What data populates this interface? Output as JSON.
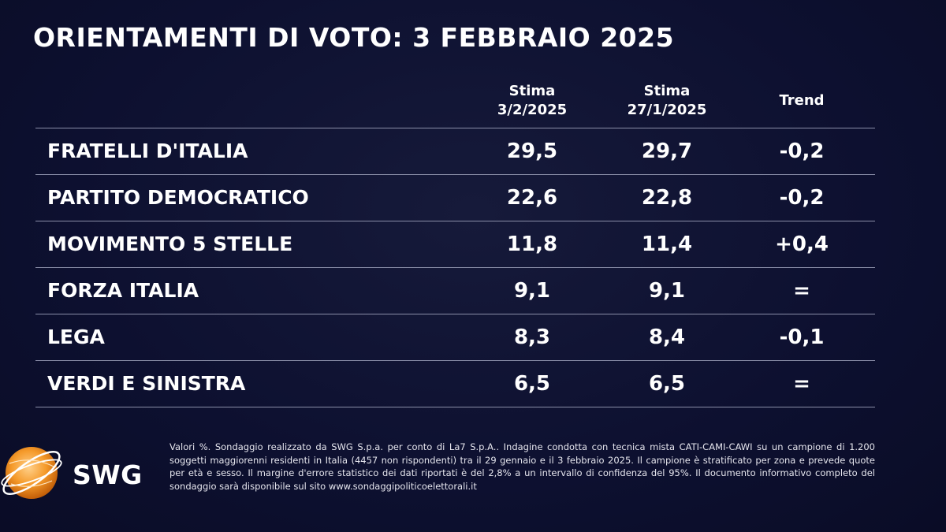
{
  "title": "ORIENTAMENTI DI VOTO: 3 FEBBRAIO 2025",
  "columns": {
    "estimate1": [
      "Stima",
      "3/2/2025"
    ],
    "estimate2": [
      "Stima",
      "27/1/2025"
    ],
    "trend": "Trend"
  },
  "chart_data": {
    "type": "table",
    "title": "ORIENTAMENTI DI VOTO: 3 FEBBRAIO 2025",
    "headers": [
      "",
      "Stima 3/2/2025",
      "Stima 27/1/2025",
      "Trend"
    ],
    "rows": [
      {
        "party": "FRATELLI D'ITALIA",
        "current": "29,5",
        "previous": "29,7",
        "trend": "-0,2"
      },
      {
        "party": "PARTITO DEMOCRATICO",
        "current": "22,6",
        "previous": "22,8",
        "trend": "-0,2"
      },
      {
        "party": "MOVIMENTO 5 STELLE",
        "current": "11,8",
        "previous": "11,4",
        "trend": "+0,4"
      },
      {
        "party": "FORZA ITALIA",
        "current": "9,1",
        "previous": "9,1",
        "trend": "="
      },
      {
        "party": "LEGA",
        "current": "8,3",
        "previous": "8,4",
        "trend": "-0,1"
      },
      {
        "party": "VERDI E SINISTRA",
        "current": "6,5",
        "previous": "6,5",
        "trend": "="
      }
    ]
  },
  "logo": {
    "text": "SWG",
    "icon": "swg-globe-icon",
    "color": "#f08a1c"
  },
  "footnote": "Valori %. Sondaggio realizzato da SWG S.p.a. per conto di La7 S.p.A.. Indagine condotta con tecnica mista CATI-CAMI-CAWI su un campione di 1.200 soggetti maggiorenni residenti in Italia (4457 non rispondenti) tra il 29 gennaio e il 3 febbraio 2025. Il campione è stratificato per zona e prevede quote per età e sesso. Il margine d'errore statistico dei dati riportati è del 2,8% a un intervallo di confidenza del 95%. Il documento informativo completo del sondaggio sarà disponibile sul sito www.sondaggipoliticoelettorali.it"
}
